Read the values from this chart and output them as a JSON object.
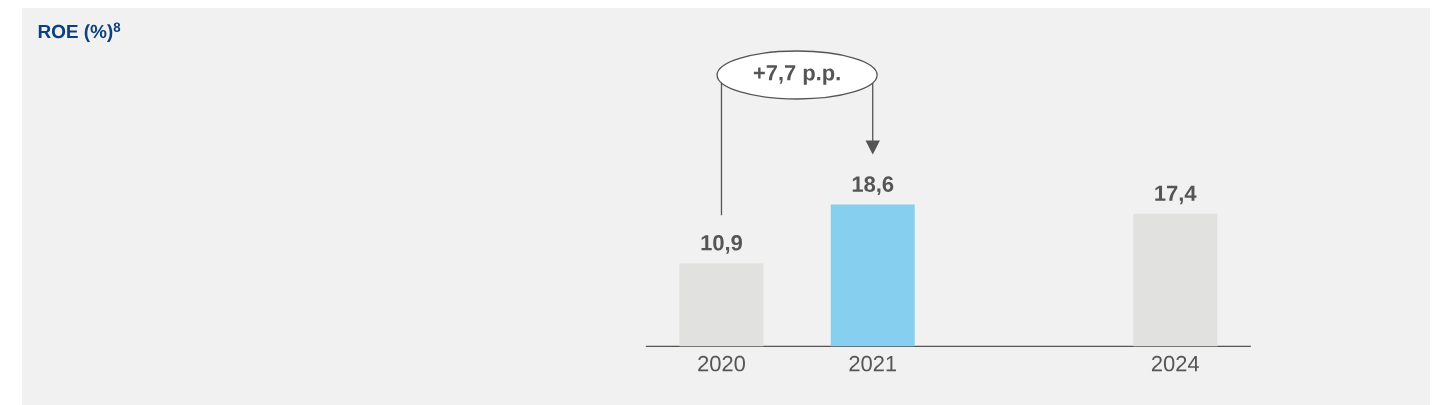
{
  "chart_data": {
    "type": "bar",
    "title": "ROE (%)$^{8}$",
    "categories": [
      "2020",
      "2021",
      null,
      "2024"
    ],
    "values": [
      10.9,
      18.6,
      null,
      17.4
    ],
    "colors": [
      "#e1e1df",
      "#87cfef",
      "#e1e1df",
      "#e1e1df"
    ],
    "value_labels": [
      "10,9",
      "18,6",
      null,
      "17,4"
    ],
    "annotations": [
      "+7,7 p.p."
    ]
  }
}
